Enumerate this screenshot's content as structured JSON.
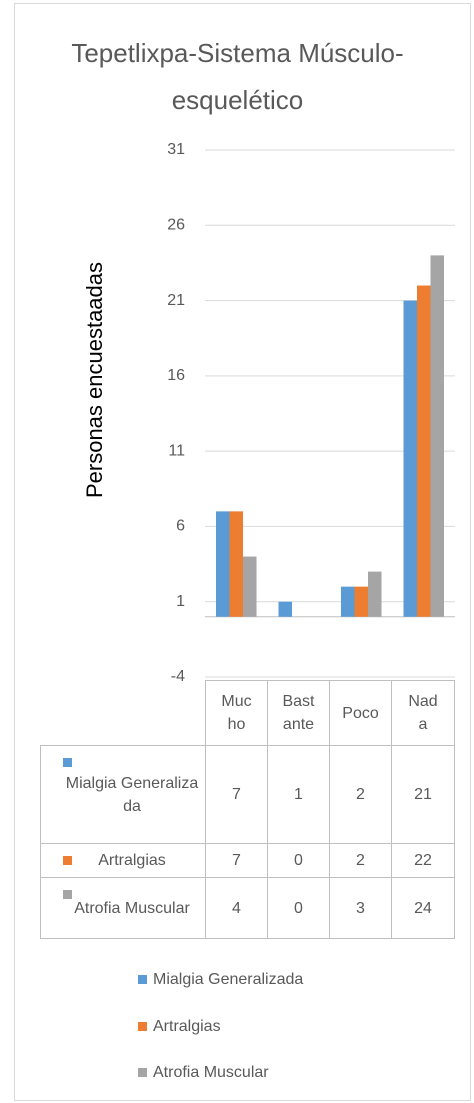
{
  "chart_data": {
    "type": "bar",
    "title": "Tepetlixpa-Sistema Músculo-esquelético",
    "y_label": "Personas encuestaadas",
    "categories": [
      "Mucho",
      "Bastante",
      "Poco",
      "Nada"
    ],
    "series": [
      {
        "name": "Mialgia Generalizada",
        "color": "#5b9bd5",
        "values": [
          7,
          1,
          2,
          21
        ]
      },
      {
        "name": "Artralgias",
        "color": "#ed7d31",
        "values": [
          7,
          0,
          2,
          22
        ]
      },
      {
        "name": "Atrofia Muscular",
        "color": "#a5a5a5",
        "values": [
          4,
          0,
          3,
          24
        ]
      }
    ],
    "ylim": [
      -4,
      31
    ],
    "yticks": [
      -4,
      1,
      6,
      11,
      16,
      21,
      26,
      31
    ],
    "grid": true,
    "legend": "bottom",
    "data_table": true
  }
}
